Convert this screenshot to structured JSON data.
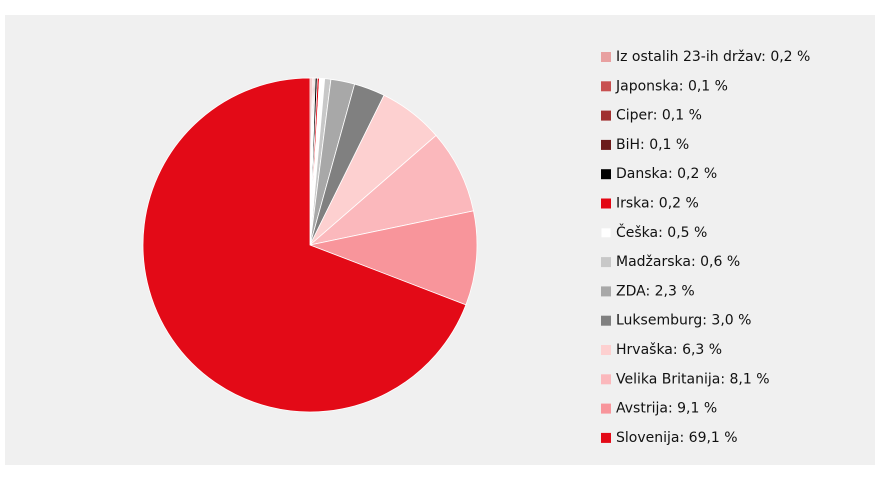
{
  "chart_data": {
    "type": "pie",
    "categories": [
      "Iz ostalih 23-ih držav",
      "Japonska",
      "Ciper",
      "BiH",
      "Danska",
      "Irska",
      "Češka",
      "Madžarska",
      "ZDA",
      "Luksemburg",
      "Hrvaška",
      "Velika Britanija",
      "Avstrija",
      "Slovenija"
    ],
    "values": [
      0.2,
      0.1,
      0.1,
      0.1,
      0.2,
      0.2,
      0.5,
      0.6,
      2.3,
      3.0,
      6.3,
      8.1,
      9.1,
      69.1
    ],
    "value_labels": [
      "0,2 %",
      "0,1 %",
      "0,1 %",
      "0,1 %",
      "0,2 %",
      "0,2 %",
      "0,5 %",
      "0,6 %",
      "2,3 %",
      "3,0 %",
      "6,3 %",
      "8,1 %",
      "9,1 %",
      "69,1 %"
    ],
    "colors": [
      "#e8a0a0",
      "#c85050",
      "#a03030",
      "#6b1c1c",
      "#000000",
      "#e30613",
      "#ffffff",
      "#c8c8c8",
      "#a8a8a8",
      "#808080",
      "#fdd0d0",
      "#fbb8bc",
      "#f8959b",
      "#e30a17"
    ],
    "legend": "right"
  }
}
